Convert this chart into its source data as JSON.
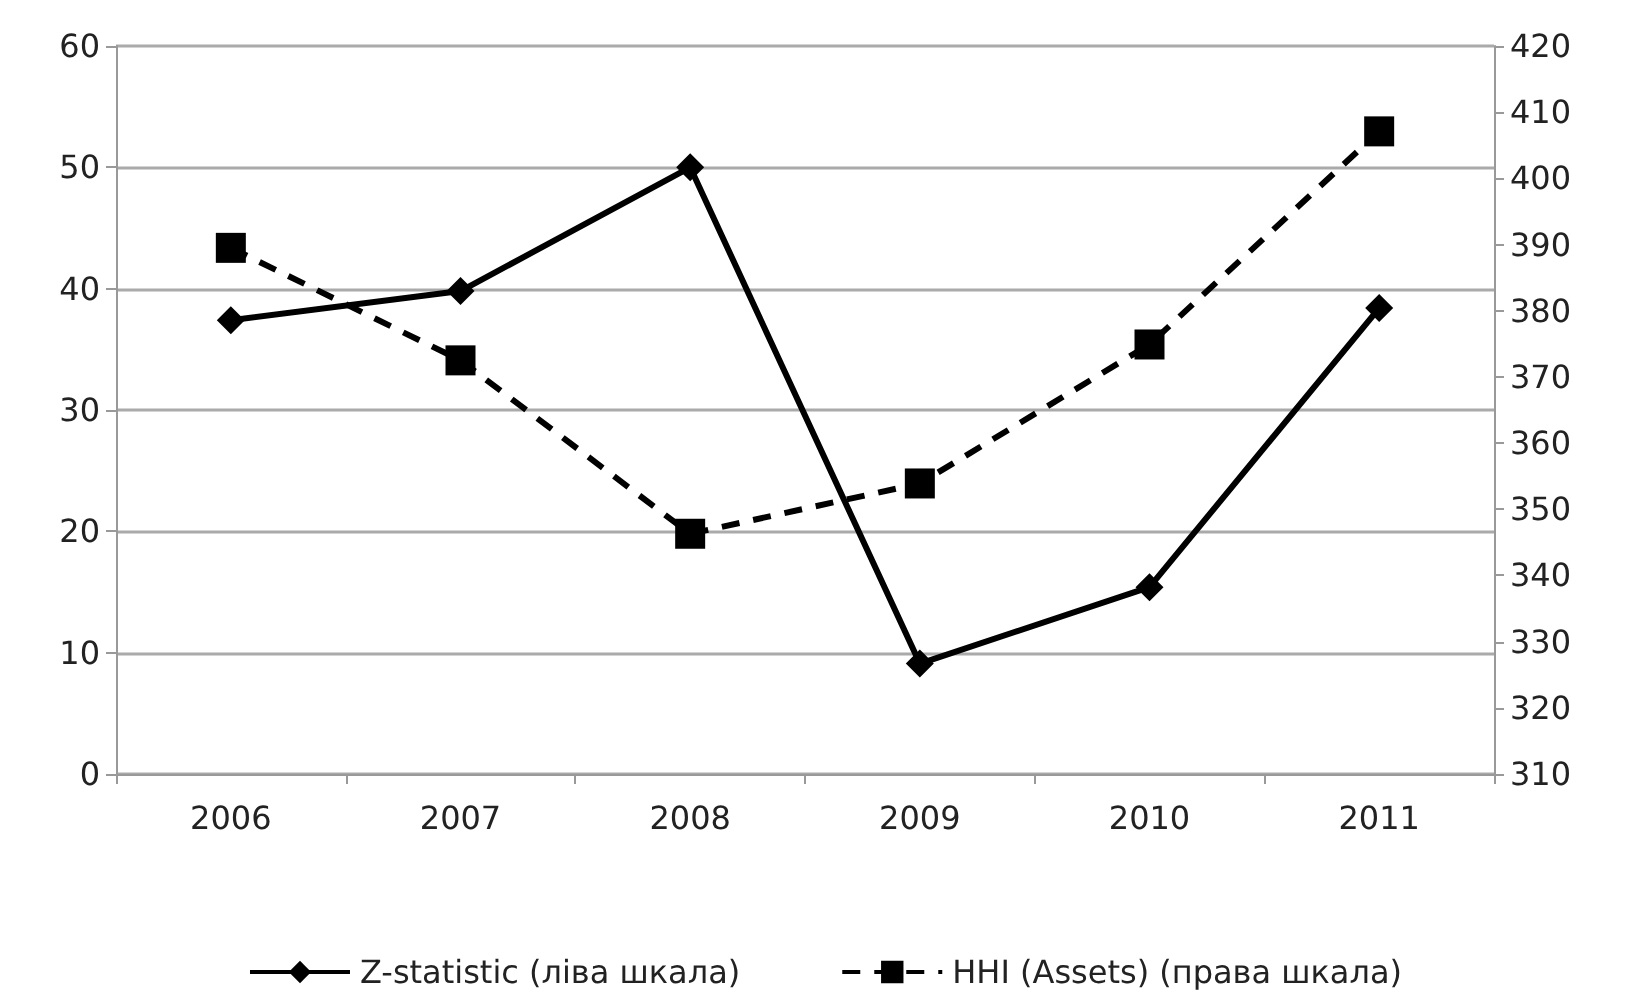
{
  "chart_data": {
    "type": "line",
    "categories": [
      "2006",
      "2007",
      "2008",
      "2009",
      "2010",
      "2011"
    ],
    "series": [
      {
        "name": "Z-statistic (ліва шкала)",
        "color": "#000000",
        "values": [
          37.4,
          39.8,
          50,
          9.1,
          15.4,
          38.4
        ],
        "marker": "diamond",
        "line_style": "solid"
      },
      {
        "name": "HHI (Assets) (права шкала)",
        "color": "#000000",
        "values": [
          389.5,
          372.5,
          346.3,
          353.9,
          374.9,
          407.1
        ],
        "marker": "square",
        "line_style": "dashed",
        "axis": "y2"
      }
    ],
    "ylim": [
      0,
      60
    ],
    "yticks": [
      0,
      10,
      20,
      30,
      40,
      50,
      60
    ],
    "y2lim": [
      310,
      420
    ],
    "y2ticks": [
      310,
      320,
      330,
      340,
      350,
      360,
      370,
      380,
      390,
      400,
      410,
      420
    ],
    "grid": "y",
    "legend": "bottom"
  }
}
